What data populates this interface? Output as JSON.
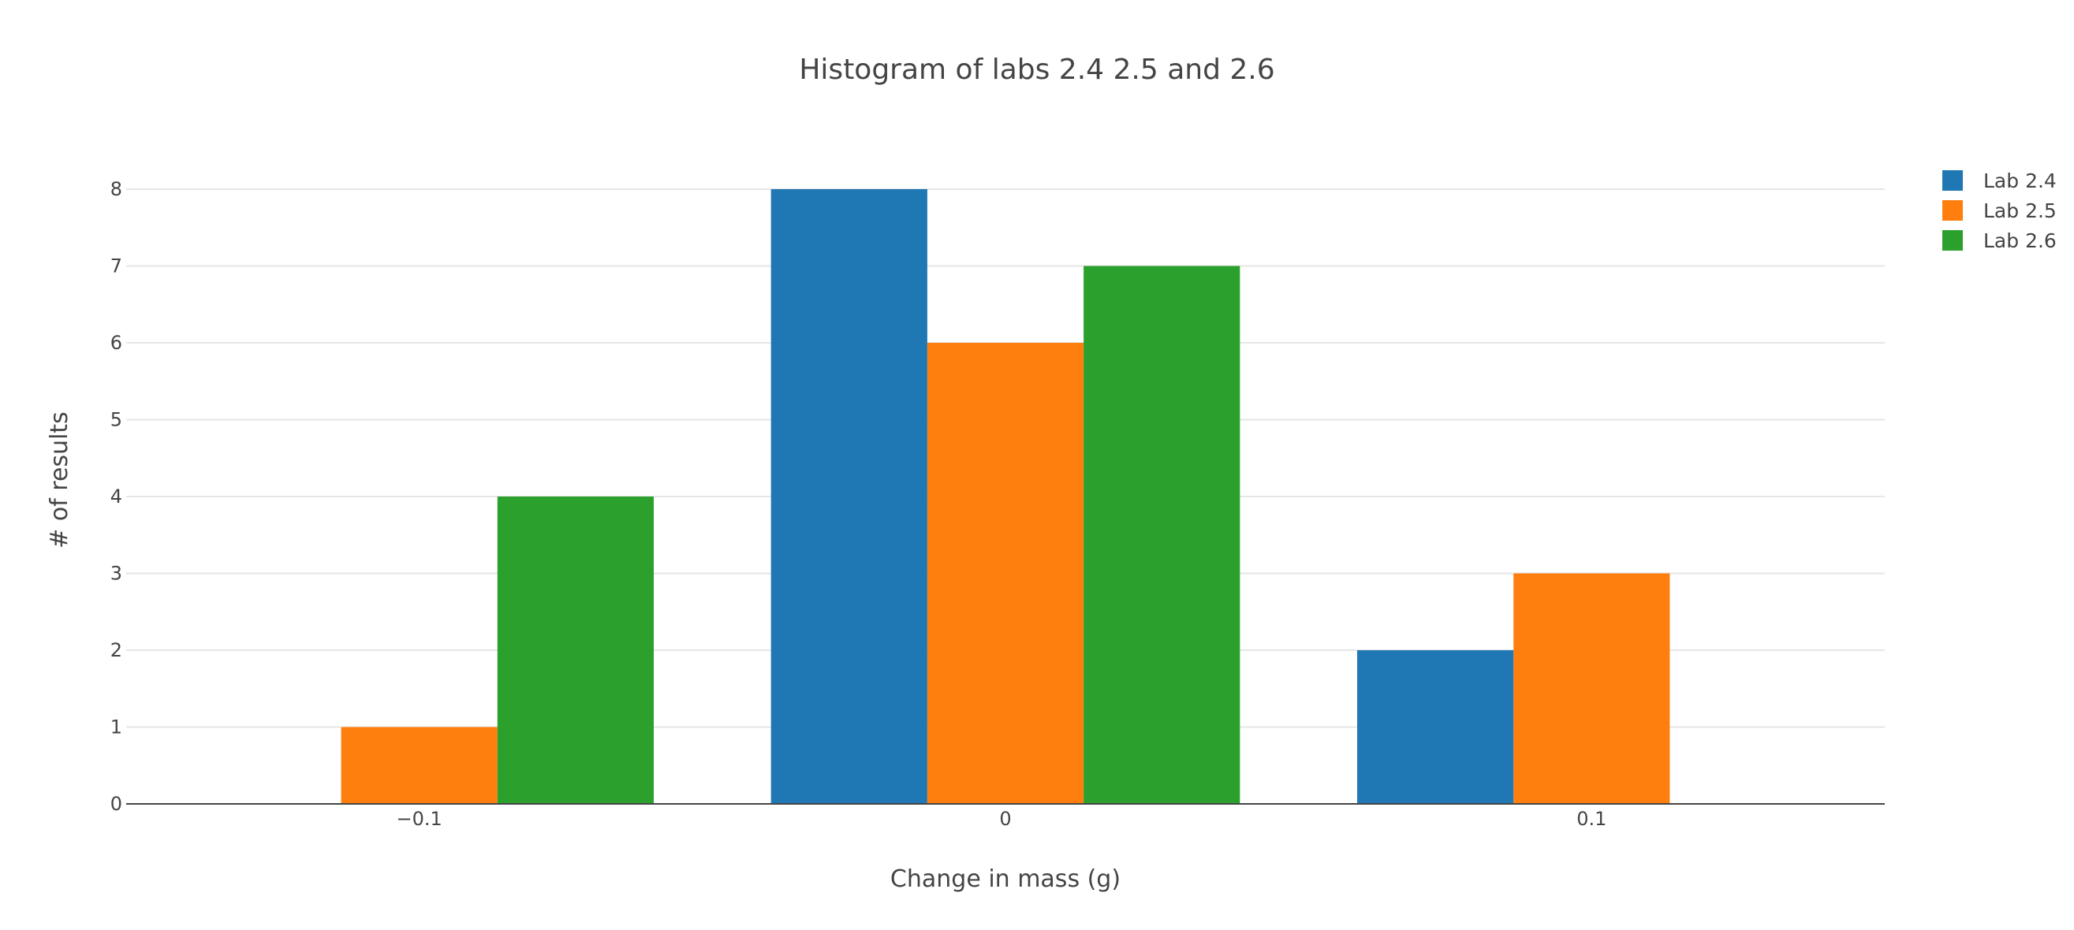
{
  "chart_data": {
    "type": "bar",
    "title": "Histogram of labs 2.4 2.5 and 2.6",
    "xlabel": "Change in mass (g)",
    "ylabel": "# of results",
    "categories": [
      "−0.1",
      "0",
      "0.1"
    ],
    "series": [
      {
        "name": "Lab 2.4",
        "color": "#1f77b4",
        "values": [
          0,
          8,
          2
        ]
      },
      {
        "name": "Lab 2.5",
        "color": "#ff7f0e",
        "values": [
          1,
          6,
          3
        ]
      },
      {
        "name": "Lab 2.6",
        "color": "#2ca02c",
        "values": [
          4,
          7,
          0
        ]
      }
    ],
    "ylim": [
      0,
      8
    ],
    "yticks": [
      "0",
      "1",
      "2",
      "3",
      "4",
      "5",
      "6",
      "7",
      "8"
    ],
    "grid": true,
    "legend_position": "top-right"
  }
}
